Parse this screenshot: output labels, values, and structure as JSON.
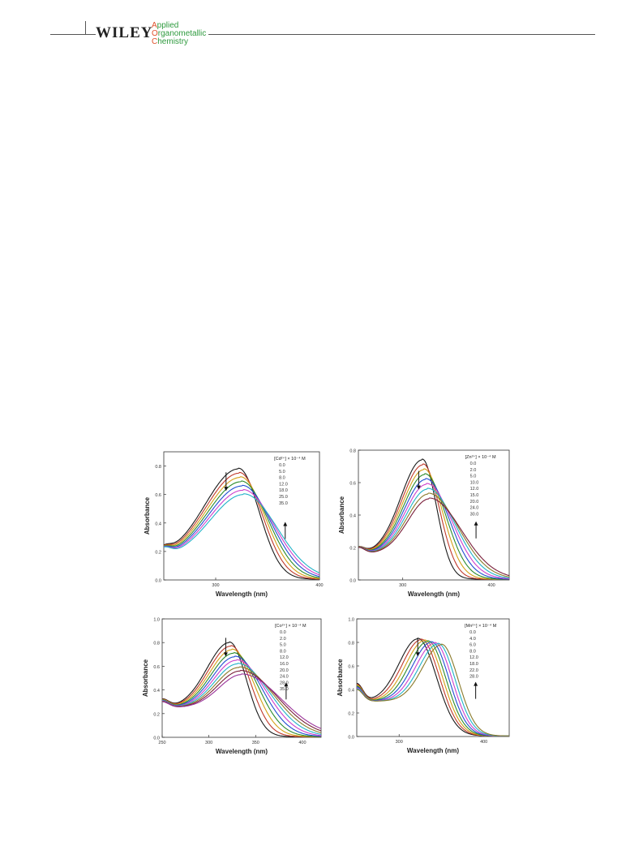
{
  "header": {
    "publisher": "WILEY",
    "journal_lines": [
      "Applied",
      "Organometallic",
      "Chemistry"
    ],
    "colors": {
      "first_letter": "#e0512b",
      "journal_text": "#2e9a3e",
      "rule": "#555555"
    }
  },
  "chart_data": [
    {
      "type": "line",
      "xlabel": "Wavelength    (nm)",
      "ylabel": "Absorbance",
      "xlim": [
        250,
        400
      ],
      "ylim": [
        0,
        0.9
      ],
      "xticks": [
        300,
        400
      ],
      "xtick_labels": [
        "300",
        "400"
      ],
      "yticks": [
        0.0,
        0.2,
        0.4,
        0.6,
        0.8
      ],
      "ytick_labels": [
        "0.0",
        "0.2",
        "0.4",
        "0.6",
        "0.8"
      ],
      "legend_title": "[Cd²⁺] × 10⁻⁴ M",
      "legend_values": [
        "0.0",
        "5.0",
        "8.0",
        "12.0",
        "18.0",
        "25.0",
        "35.0"
      ],
      "arrows": [
        "down",
        "up"
      ],
      "series_params": {
        "peak_start": 772,
        "peak_end": 766,
        "amp_start": 0.78,
        "amp_end": 0.6,
        "width_start": 28,
        "width_end": 36,
        "base_left_start": 0.2,
        "base_left_end": 0.21,
        "tail_start": 0.01,
        "tail_end": 0.03
      }
    },
    {
      "type": "line",
      "xlabel": "Wavelength    (nm)",
      "ylabel": "Absorbance",
      "xlim": [
        250,
        420
      ],
      "ylim": [
        0,
        0.8
      ],
      "xticks": [
        300,
        400
      ],
      "xtick_labels": [
        "300",
        "400"
      ],
      "yticks": [
        0.0,
        0.2,
        0.4,
        0.6,
        0.8
      ],
      "ytick_labels": [
        "0.0",
        "0.2",
        "0.4",
        "0.6",
        "0.8"
      ],
      "legend_title": "[Zn²⁺] × 10⁻⁴ M",
      "legend_values": [
        "0.0",
        "2.0",
        "5.0",
        "10.0",
        "12.0",
        "15.0",
        "20.0",
        "24.0",
        "30.0"
      ],
      "arrows": [
        "down",
        "up"
      ]
    },
    {
      "type": "line",
      "xlabel": "Wavelength  (nm)",
      "ylabel": "Absorbance",
      "xlim": [
        250,
        420
      ],
      "ylim": [
        0,
        1.0
      ],
      "xticks": [
        250,
        300,
        350,
        400
      ],
      "xtick_labels": [
        "250",
        "300",
        "350",
        "400"
      ],
      "yticks": [
        0.0,
        0.2,
        0.4,
        0.6,
        0.8,
        1.0
      ],
      "ytick_labels": [
        "0.0",
        "0.2",
        "0.4",
        "0.6",
        "0.8",
        "1.0"
      ],
      "legend_title": "[Co²⁺] × 10⁻⁴ M",
      "legend_values": [
        "0.0",
        "2.0",
        "5.0",
        "8.0",
        "12.0",
        "16.0",
        "20.0",
        "24.0",
        "28.0",
        "35.0"
      ],
      "arrows": [
        "down",
        "up"
      ]
    },
    {
      "type": "line",
      "xlabel": "Wavelength    (nm)",
      "ylabel": "Absorbance",
      "xlim": [
        250,
        430
      ],
      "ylim": [
        0,
        1.0
      ],
      "xticks": [
        300,
        400
      ],
      "xtick_labels": [
        "300",
        "400"
      ],
      "yticks": [
        0.0,
        0.2,
        0.4,
        0.6,
        0.8,
        1.0
      ],
      "ytick_labels": [
        "0.0",
        "0.2",
        "0.4",
        "0.6",
        "0.8",
        "1.0"
      ],
      "legend_title": "[Mn²⁺] × 10⁻⁴ M",
      "legend_values": [
        "0.0",
        "4.0",
        "6.0",
        "8.0",
        "12.0",
        "18.0",
        "22.0",
        "28.0"
      ],
      "arrows": [
        "down",
        "up"
      ]
    }
  ],
  "series_colors": [
    "#1a1a1a",
    "#c0392b",
    "#d4a017",
    "#2c8c2c",
    "#1f4fd1",
    "#cc3fcc",
    "#20b2c8",
    "#8a7a2a",
    "#7a1f3a",
    "#993399"
  ]
}
